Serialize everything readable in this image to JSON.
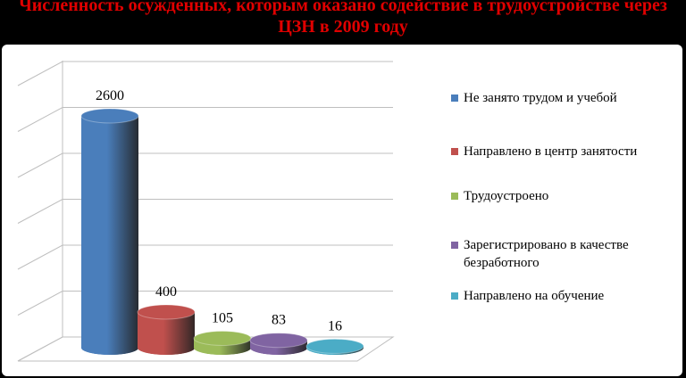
{
  "chart_data": {
    "type": "bar3d",
    "title": "Численность осужденных, которым оказано содействие в трудоустройстве через ЦЗН в 2009 году",
    "categories": [
      "Не занято трудом и учебой",
      "Направлено в центр занятости",
      "Трудоустроено",
      "Зарегистрировано в качестве безработного",
      "Направлено на обучение"
    ],
    "values": [
      2600,
      400,
      105,
      83,
      16
    ],
    "colors": [
      "#4a7ebb",
      "#c0504d",
      "#9bbb59",
      "#8064a2",
      "#4bacc6"
    ],
    "ylim": [
      0,
      3500
    ],
    "legend": "right"
  }
}
